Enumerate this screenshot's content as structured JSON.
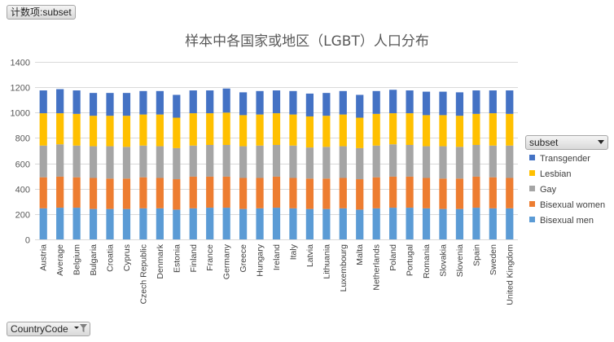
{
  "pivot": {
    "value_field": "计数项:subset",
    "axis_field": "CountryCode",
    "legend_field": "subset"
  },
  "colors": {
    "Bisexual men": "#5b9bd5",
    "Bisexual women": "#ed7d31",
    "Gay": "#a5a5a5",
    "Lesbian": "#ffc000",
    "Transgender": "#4472c4"
  },
  "chart_data": {
    "type": "bar",
    "stacked": true,
    "title": "样本中各国家或地区（LGBT）人口分布",
    "xlabel": "",
    "ylabel": "",
    "ylim": [
      0,
      1400
    ],
    "yticks": [
      0,
      200,
      400,
      600,
      800,
      1000,
      1200,
      1400
    ],
    "grid": true,
    "legend_position": "right",
    "legend_order": [
      "Transgender",
      "Lesbian",
      "Gay",
      "Bisexual women",
      "Bisexual men"
    ],
    "categories": [
      "Austria",
      "Average",
      "Belgium",
      "Bulgaria",
      "Croatia",
      "Cyprus",
      "Czech Republic",
      "Denmark",
      "Estonia",
      "Finland",
      "France",
      "Germany",
      "Greece",
      "Hungary",
      "Ireland",
      "Italy",
      "Latvia",
      "Lithuania",
      "Luxembourg",
      "Malta",
      "Netherlands",
      "Poland",
      "Portugal",
      "Romania",
      "Slovakia",
      "Slovenia",
      "Spain",
      "Sweden",
      "United Kingdom"
    ],
    "series": [
      {
        "name": "Bisexual men",
        "values": [
          245,
          250,
          250,
          240,
          240,
          240,
          245,
          245,
          235,
          245,
          250,
          250,
          240,
          245,
          250,
          245,
          240,
          240,
          245,
          235,
          245,
          250,
          250,
          245,
          240,
          240,
          250,
          245,
          245
        ]
      },
      {
        "name": "Bisexual women",
        "values": [
          245,
          245,
          240,
          245,
          240,
          240,
          245,
          240,
          240,
          250,
          245,
          245,
          245,
          240,
          245,
          240,
          240,
          240,
          240,
          240,
          245,
          245,
          245,
          240,
          240,
          240,
          245,
          245,
          240
        ]
      },
      {
        "name": "Gay",
        "values": [
          250,
          255,
          250,
          250,
          255,
          250,
          250,
          250,
          245,
          245,
          250,
          250,
          250,
          255,
          250,
          255,
          245,
          250,
          250,
          245,
          250,
          255,
          250,
          250,
          255,
          250,
          250,
          250,
          255
        ]
      },
      {
        "name": "Lesbian",
        "values": [
          255,
          245,
          250,
          240,
          240,
          245,
          245,
          250,
          240,
          255,
          250,
          255,
          245,
          245,
          250,
          245,
          245,
          245,
          250,
          240,
          250,
          245,
          250,
          245,
          245,
          245,
          245,
          255,
          250
        ]
      },
      {
        "name": "Transgender",
        "values": [
          180,
          190,
          185,
          180,
          180,
          180,
          185,
          185,
          180,
          180,
          180,
          190,
          180,
          185,
          180,
          185,
          180,
          180,
          185,
          180,
          180,
          185,
          180,
          185,
          185,
          185,
          185,
          180,
          185
        ]
      }
    ]
  }
}
